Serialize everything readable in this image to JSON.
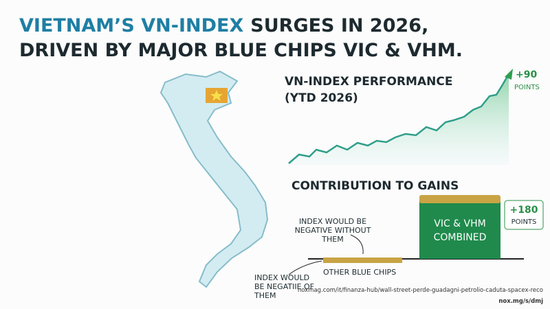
{
  "title": {
    "highlight": "VIETNAM’S VN-INDEX",
    "rest": "SURGES IN 2026,",
    "line2": "DRIVEN BY MAJOR BLUE CHIPS VIC & VHM."
  },
  "performance": {
    "heading": [
      "VN-INDEX PERFORMANCE",
      "(YTD 2026)"
    ],
    "gain": "+90",
    "unit": "POINTS"
  },
  "contribution": {
    "heading": "CONTRIBUTION TO GAINS",
    "big_bar": [
      "VIC & VHM",
      "COMBINED"
    ],
    "big_gain": "+180",
    "big_unit": "POINTS",
    "small_bar": "OTHER BLUE CHIPS",
    "note_top": [
      "INDEX WOULD BE",
      "NEGATIVE WITHOUT",
      "THEM"
    ],
    "note_bottom": [
      "INDEX WOULD",
      "BE NEGATIIE OF",
      "THEM"
    ]
  },
  "source": [
    "noxmag.com/it/finanza-hub/wall-street-perde-guadagni-petrolio-caduta-spacex-reco",
    "nox.mg/s/dmj"
  ]
}
